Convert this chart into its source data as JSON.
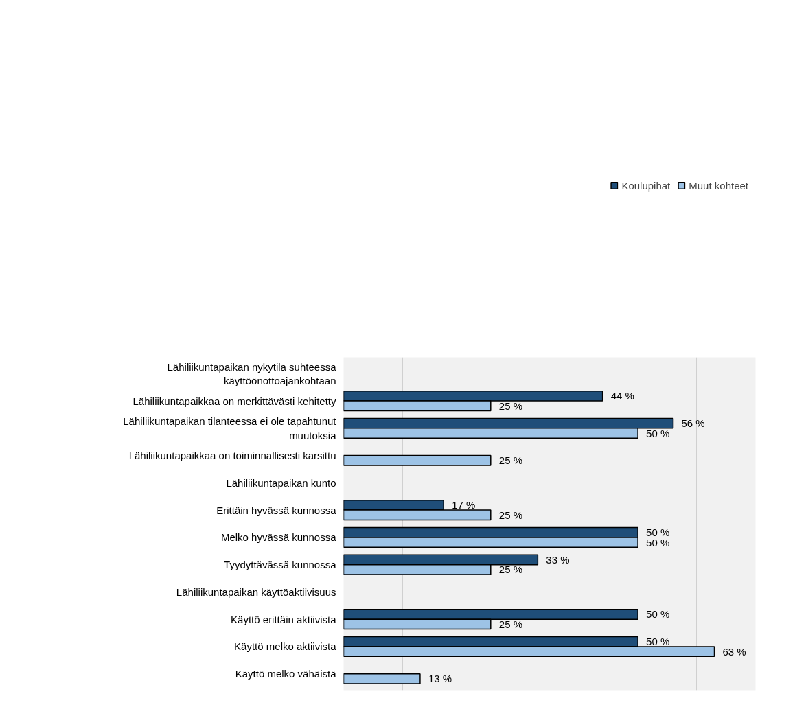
{
  "chart_data": {
    "type": "bar",
    "orientation": "horizontal",
    "categories": [
      "Lähiliikuntapaikan nykytila suhteessa käyttöönottoajankohtaan",
      "Lähiliikuntapaikkaa on merkittävästi kehitetty",
      "Lähiliikuntapaikan tilanteessa ei ole tapahtunut muutoksia",
      "Lähiliikuntapaikkaa on toiminnallisesti karsittu",
      "Lähiliikuntapaikan kunto",
      "Erittäin hyvässä kunnossa",
      "Melko hyvässä kunnossa",
      "Tyydyttävässä kunnossa",
      "Lähiliikuntapaikan käyttöaktiivisuus",
      "Käyttö erittäin aktiivista",
      "Käyttö melko aktiivista",
      "Käyttö melko vähäistä"
    ],
    "series": [
      {
        "name": "Koulupihat",
        "color": "#1f4e79",
        "values": [
          null,
          44,
          56,
          null,
          null,
          17,
          50,
          33,
          null,
          50,
          50,
          null
        ],
        "value_labels": [
          null,
          "44 %",
          "56 %",
          null,
          null,
          "17 %",
          "50 %",
          "33 %",
          null,
          "50 %",
          "50 %",
          null
        ]
      },
      {
        "name": "Muut kohteet",
        "color": "#9dc3e6",
        "values": [
          null,
          25,
          50,
          25,
          null,
          25,
          50,
          25,
          null,
          25,
          63,
          13
        ],
        "value_labels": [
          null,
          "25 %",
          "50 %",
          "25 %",
          null,
          "25 %",
          "50 %",
          "25 %",
          null,
          "25 %",
          "63 %",
          "13 %"
        ]
      }
    ],
    "xlim": [
      0,
      70
    ],
    "xticks": [
      {
        "value": 0,
        "label": null
      },
      {
        "value": 10,
        "label": null
      },
      {
        "value": 20,
        "label": null
      },
      {
        "value": 30,
        "label": null
      },
      {
        "value": 40,
        "label": null
      },
      {
        "value": 50,
        "label": null
      },
      {
        "value": 60,
        "label": null
      }
    ],
    "tick_labels": "y",
    "grid": "x",
    "legend": "top"
  }
}
